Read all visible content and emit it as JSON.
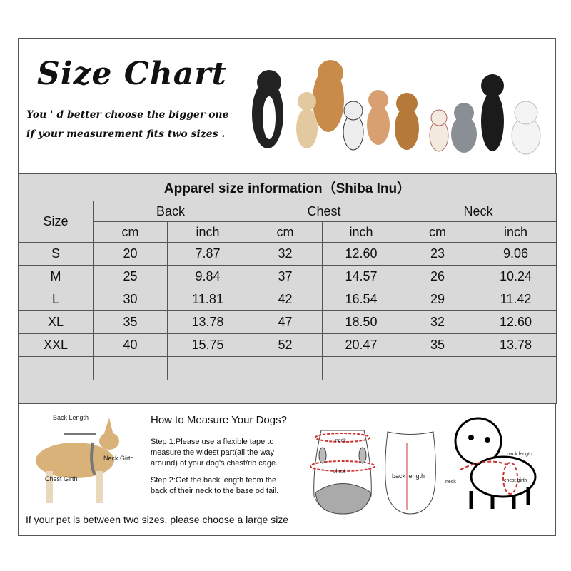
{
  "header": {
    "title": "Size Chart",
    "subtitle_line1": "You ' d better choose the bigger one",
    "subtitle_line2": "if your measurement fits two sizes ."
  },
  "table": {
    "title": "Apparel  size  information（Shiba Inu）",
    "size_header": "Size",
    "groups": [
      "Back",
      "Chest",
      "Neck"
    ],
    "units": [
      "cm",
      "inch",
      "cm",
      "inch",
      "cm",
      "inch"
    ],
    "rows": [
      [
        "S",
        "20",
        "7.87",
        "32",
        "12.60",
        "23",
        "9.06"
      ],
      [
        "M",
        "25",
        "9.84",
        "37",
        "14.57",
        "26",
        "10.24"
      ],
      [
        "L",
        "30",
        "11.81",
        "42",
        "16.54",
        "29",
        "11.42"
      ],
      [
        "XL",
        "35",
        "13.78",
        "47",
        "18.50",
        "32",
        "12.60"
      ],
      [
        "XXL",
        "40",
        "15.75",
        "52",
        "20.47",
        "35",
        "13.78"
      ]
    ],
    "colors": {
      "cell_bg": "#d9d9d9",
      "border": "#555555"
    }
  },
  "measure": {
    "heading": "How to Measure Your Dogs?",
    "step1": "Step 1:Please use a flexible tape to measure the widest part(all the way around) of your dog's chest/rib cage.",
    "step2": "Step 2:Get the back length feom the back of their neck to the base od tail.",
    "dog_labels": {
      "back": "Back Length",
      "neck": "Neck Girth",
      "chest": "Chest Girth"
    },
    "garment_labels": {
      "neck": "neck",
      "chest": "chest",
      "back": "back length"
    },
    "puppy_labels": {
      "back": "back length",
      "neck": "neck",
      "chest": "chest girth"
    },
    "footer": "If your pet is between two sizes, please choose a large size"
  }
}
